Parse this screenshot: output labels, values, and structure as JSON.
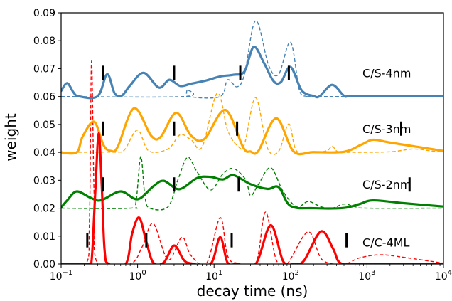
{
  "chart_data": {
    "type": "line",
    "xlabel": "decay time (ns)",
    "ylabel": "weight",
    "xscale": "log",
    "xlim": [
      0.1,
      10000
    ],
    "ylim": [
      0,
      0.09
    ],
    "xticks": [
      {
        "value": 0.1,
        "base": "10",
        "exp": "−1"
      },
      {
        "value": 1,
        "base": "10",
        "exp": "0"
      },
      {
        "value": 10,
        "base": "10",
        "exp": "1"
      },
      {
        "value": 100,
        "base": "10",
        "exp": "2"
      },
      {
        "value": 1000,
        "base": "10",
        "exp": "3"
      },
      {
        "value": 10000,
        "base": "10",
        "exp": "4"
      }
    ],
    "yticks": [
      {
        "value": 0.0,
        "label": "0.00"
      },
      {
        "value": 0.01,
        "label": "0.01"
      },
      {
        "value": 0.02,
        "label": "0.02"
      },
      {
        "value": 0.03,
        "label": "0.03"
      },
      {
        "value": 0.04,
        "label": "0.04"
      },
      {
        "value": 0.05,
        "label": "0.05"
      },
      {
        "value": 0.06,
        "label": "0.06"
      },
      {
        "value": 0.07,
        "label": "0.07"
      },
      {
        "value": 0.08,
        "label": "0.08"
      },
      {
        "value": 0.09,
        "label": "0.09"
      }
    ],
    "grid": false,
    "series": [
      {
        "name": "C/S-4nm",
        "color": "#4682b4",
        "baseline": 0.06,
        "label_y": 0.0685,
        "markers": [
          0.35,
          3,
          22,
          95
        ],
        "solid": [
          [
            0.1,
            0.062
          ],
          [
            0.12,
            0.0648
          ],
          [
            0.145,
            0.0615
          ],
          [
            0.17,
            0.0601
          ],
          [
            0.3,
            0.0601
          ],
          [
            0.4,
            0.068
          ],
          [
            0.5,
            0.0612
          ],
          [
            0.62,
            0.0603
          ],
          [
            0.8,
            0.064
          ],
          [
            1.2,
            0.0685
          ],
          [
            1.9,
            0.0632
          ],
          [
            2.6,
            0.066
          ],
          [
            3.6,
            0.0638
          ],
          [
            5,
            0.0646
          ],
          [
            8,
            0.0658
          ],
          [
            12,
            0.0672
          ],
          [
            18,
            0.0678
          ],
          [
            25,
            0.069
          ],
          [
            33,
            0.0778
          ],
          [
            45,
            0.072
          ],
          [
            60,
            0.0655
          ],
          [
            75,
            0.0652
          ],
          [
            100,
            0.0706
          ],
          [
            140,
            0.0622
          ],
          [
            200,
            0.0602
          ],
          [
            240,
            0.0601
          ],
          [
            350,
            0.0642
          ],
          [
            500,
            0.0603
          ],
          [
            620,
            0.0601
          ],
          [
            2000,
            0.0601
          ],
          [
            10000,
            0.0601
          ]
        ]
      },
      {
        "name": "C/S-3nm",
        "color": "#ffa500",
        "baseline": 0.04,
        "label_y": 0.0485,
        "markers": [
          0.35,
          3,
          20,
          2800
        ],
        "solid": [
          [
            0.1,
            0.04
          ],
          [
            0.16,
            0.04
          ],
          [
            0.19,
            0.0455
          ],
          [
            0.27,
            0.051
          ],
          [
            0.36,
            0.0425
          ],
          [
            0.45,
            0.0405
          ],
          [
            0.55,
            0.042
          ],
          [
            0.9,
            0.0558
          ],
          [
            1.5,
            0.046
          ],
          [
            2,
            0.0455
          ],
          [
            3.2,
            0.0542
          ],
          [
            5,
            0.046
          ],
          [
            7.5,
            0.0448
          ],
          [
            14,
            0.0552
          ],
          [
            24,
            0.0418
          ],
          [
            30,
            0.0403
          ],
          [
            38,
            0.0405
          ],
          [
            65,
            0.0522
          ],
          [
            110,
            0.0403
          ],
          [
            200,
            0.0401
          ],
          [
            500,
            0.0402
          ],
          [
            850,
            0.0428
          ],
          [
            1200,
            0.0445
          ],
          [
            2000,
            0.0435
          ],
          [
            5000,
            0.0418
          ],
          [
            10000,
            0.0405
          ]
        ]
      },
      {
        "name": "C/S-2nm",
        "color": "#008000",
        "baseline": 0.02,
        "label_y": 0.0285,
        "markers": [
          0.35,
          3,
          21,
          3600
        ],
        "solid": [
          [
            0.1,
            0.0202
          ],
          [
            0.12,
            0.0228
          ],
          [
            0.16,
            0.026
          ],
          [
            0.24,
            0.0238
          ],
          [
            0.33,
            0.0228
          ],
          [
            0.6,
            0.026
          ],
          [
            1,
            0.0232
          ],
          [
            1.6,
            0.0278
          ],
          [
            2.2,
            0.0298
          ],
          [
            3.5,
            0.0268
          ],
          [
            6,
            0.0308
          ],
          [
            9,
            0.0312
          ],
          [
            13,
            0.0303
          ],
          [
            18,
            0.0318
          ],
          [
            30,
            0.0286
          ],
          [
            50,
            0.0269
          ],
          [
            70,
            0.0275
          ],
          [
            100,
            0.0208
          ],
          [
            200,
            0.02
          ],
          [
            500,
            0.0201
          ],
          [
            800,
            0.0215
          ],
          [
            1200,
            0.0228
          ],
          [
            3000,
            0.0218
          ],
          [
            10000,
            0.0206
          ]
        ]
      },
      {
        "name": "C/C-4ML",
        "color": "#ff0000",
        "baseline": 0.0,
        "label_y": 0.0078,
        "markers": [
          0.22,
          1.3,
          17,
          540
        ],
        "solid": [
          [
            0.1,
            0.0
          ],
          [
            0.22,
            0.0
          ],
          [
            0.25,
            0.001
          ],
          [
            0.28,
            0.026
          ],
          [
            0.31,
            0.0468
          ],
          [
            0.34,
            0.028
          ],
          [
            0.37,
            0.005
          ],
          [
            0.42,
            0.0
          ],
          [
            0.7,
            0.0
          ],
          [
            0.85,
            0.011
          ],
          [
            1.05,
            0.0166
          ],
          [
            1.3,
            0.008
          ],
          [
            1.6,
            0.0005
          ],
          [
            2.2,
            0.0005
          ],
          [
            3,
            0.0066
          ],
          [
            4,
            0.0015
          ],
          [
            5,
            0.0002
          ],
          [
            9,
            0.0
          ],
          [
            12,
            0.0096
          ],
          [
            15,
            0.0005
          ],
          [
            20,
            0.0
          ],
          [
            35,
            0.0
          ],
          [
            55,
            0.0139
          ],
          [
            80,
            0.001
          ],
          [
            110,
            0.0
          ],
          [
            150,
            0.0012
          ],
          [
            250,
            0.0117
          ],
          [
            360,
            0.0055
          ],
          [
            450,
            0.0003
          ],
          [
            800,
            0.0
          ],
          [
            10000,
            0.0
          ]
        ]
      }
    ],
    "dashed": [
      {
        "series": "C/S-4nm",
        "points": [
          [
            0.1,
            0.06
          ],
          [
            4,
            0.06
          ],
          [
            4.4,
            0.0625
          ],
          [
            4.8,
            0.06
          ],
          [
            12,
            0.06
          ],
          [
            15,
            0.066
          ],
          [
            20,
            0.0635
          ],
          [
            25,
            0.068
          ],
          [
            35,
            0.0872
          ],
          [
            52,
            0.071
          ],
          [
            70,
            0.068
          ],
          [
            100,
            0.0795
          ],
          [
            130,
            0.0625
          ],
          [
            160,
            0.0601
          ],
          [
            200,
            0.06
          ],
          [
            2000,
            0.06
          ],
          [
            10000,
            0.06
          ]
        ]
      },
      {
        "series": "C/S-3nm",
        "points": [
          [
            0.1,
            0.04
          ],
          [
            0.38,
            0.0401
          ],
          [
            0.55,
            0.0401
          ],
          [
            0.68,
            0.041
          ],
          [
            1,
            0.048
          ],
          [
            1.4,
            0.0405
          ],
          [
            2.5,
            0.0412
          ],
          [
            3.6,
            0.0463
          ],
          [
            5,
            0.0445
          ],
          [
            7,
            0.042
          ],
          [
            11,
            0.0612
          ],
          [
            15,
            0.048
          ],
          [
            20,
            0.0425
          ],
          [
            25,
            0.043
          ],
          [
            35,
            0.0596
          ],
          [
            50,
            0.0415
          ],
          [
            70,
            0.0404
          ],
          [
            95,
            0.0502
          ],
          [
            120,
            0.0405
          ],
          [
            200,
            0.04
          ],
          [
            300,
            0.0406
          ],
          [
            350,
            0.0422
          ],
          [
            420,
            0.0401
          ],
          [
            600,
            0.04
          ],
          [
            2000,
            0.0402
          ],
          [
            4000,
            0.0412
          ],
          [
            7000,
            0.0405
          ],
          [
            10000,
            0.0401
          ]
        ]
      },
      {
        "series": "C/S-2nm",
        "points": [
          [
            0.1,
            0.02
          ],
          [
            0.8,
            0.02
          ],
          [
            0.95,
            0.022
          ],
          [
            1.1,
            0.0385
          ],
          [
            1.25,
            0.024
          ],
          [
            1.45,
            0.02
          ],
          [
            2.5,
            0.0205
          ],
          [
            3.4,
            0.0305
          ],
          [
            4.5,
            0.0382
          ],
          [
            6,
            0.033
          ],
          [
            9,
            0.0265
          ],
          [
            13,
            0.0322
          ],
          [
            18,
            0.0342
          ],
          [
            26,
            0.0301
          ],
          [
            30,
            0.0245
          ],
          [
            38,
            0.0285
          ],
          [
            55,
            0.0345
          ],
          [
            80,
            0.026
          ],
          [
            120,
            0.0205
          ],
          [
            170,
            0.0224
          ],
          [
            250,
            0.0205
          ],
          [
            350,
            0.02
          ],
          [
            500,
            0.0215
          ],
          [
            700,
            0.0205
          ],
          [
            1000,
            0.02
          ],
          [
            10000,
            0.02
          ]
        ]
      },
      {
        "series": "C/C-4ML",
        "points": [
          [
            0.1,
            0.0
          ],
          [
            0.21,
            0.0
          ],
          [
            0.235,
            0.016
          ],
          [
            0.25,
            0.0727
          ],
          [
            0.27,
            0.025
          ],
          [
            0.3,
            0.0
          ],
          [
            0.8,
            0.0
          ],
          [
            1.15,
            0.0062
          ],
          [
            1.6,
            0.0145
          ],
          [
            2.5,
            0.0015
          ],
          [
            3.8,
            0.0096
          ],
          [
            5,
            0.003
          ],
          [
            8,
            0.0003
          ],
          [
            12,
            0.0166
          ],
          [
            15,
            0.003
          ],
          [
            20,
            0.0003
          ],
          [
            35,
            0.0
          ],
          [
            47,
            0.0186
          ],
          [
            65,
            0.0015
          ],
          [
            90,
            0.0
          ],
          [
            170,
            0.0115
          ],
          [
            260,
            0.0015
          ],
          [
            500,
            0.0
          ],
          [
            800,
            0.0022
          ],
          [
            1500,
            0.0033
          ],
          [
            3000,
            0.0024
          ],
          [
            10000,
            0.0003
          ]
        ]
      }
    ]
  }
}
